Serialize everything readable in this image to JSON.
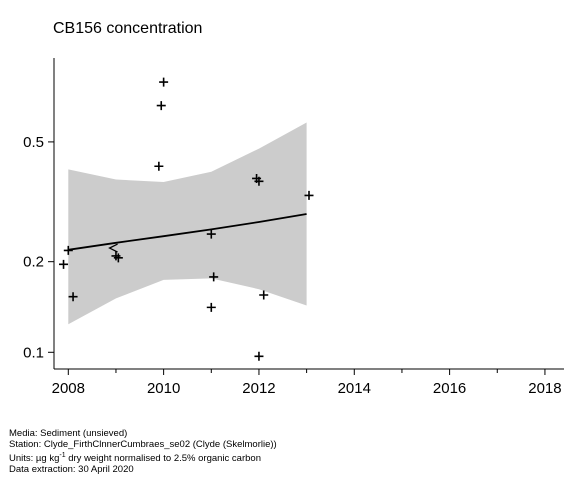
{
  "chart_data": {
    "type": "scatter",
    "title": "CB156 concentration",
    "xlabel": "",
    "ylabel": "",
    "y_scale": "log",
    "xlim": [
      2007.7,
      2018.4
    ],
    "ylim": [
      0.088,
      0.95
    ],
    "x_ticks": [
      2008,
      2010,
      2012,
      2014,
      2016,
      2018
    ],
    "x_tick_labels": [
      "2008",
      "2010",
      "2012",
      "2014",
      "2016",
      "2018"
    ],
    "y_ticks": [
      0.1,
      0.2,
      0.5
    ],
    "y_tick_labels": [
      "0.1",
      "0.2",
      "0.5"
    ],
    "grid": false,
    "points": [
      {
        "x": 2007.9,
        "y": 0.196,
        "marker": "+"
      },
      {
        "x": 2008.0,
        "y": 0.218,
        "marker": "+"
      },
      {
        "x": 2008.1,
        "y": 0.153,
        "marker": "+"
      },
      {
        "x": 2008.95,
        "y": 0.222,
        "marker": "<"
      },
      {
        "x": 2009.0,
        "y": 0.209,
        "marker": "+"
      },
      {
        "x": 2009.05,
        "y": 0.206,
        "marker": "+"
      },
      {
        "x": 2009.9,
        "y": 0.415,
        "marker": "+"
      },
      {
        "x": 2009.95,
        "y": 0.66,
        "marker": "+"
      },
      {
        "x": 2010.0,
        "y": 0.79,
        "marker": "+"
      },
      {
        "x": 2011.0,
        "y": 0.141,
        "marker": "+"
      },
      {
        "x": 2011.0,
        "y": 0.247,
        "marker": "+"
      },
      {
        "x": 2011.05,
        "y": 0.178,
        "marker": "+"
      },
      {
        "x": 2011.95,
        "y": 0.378,
        "marker": "+"
      },
      {
        "x": 2012.0,
        "y": 0.37,
        "marker": "+"
      },
      {
        "x": 2012.0,
        "y": 0.097,
        "marker": "+"
      },
      {
        "x": 2012.1,
        "y": 0.155,
        "marker": "+"
      },
      {
        "x": 2013.05,
        "y": 0.332,
        "marker": "+"
      }
    ],
    "trend": {
      "x": [
        2008.0,
        2009.0,
        2010.0,
        2011.0,
        2012.0,
        2013.0
      ],
      "y": [
        0.219,
        0.231,
        0.243,
        0.256,
        0.271,
        0.288
      ]
    },
    "confidence_band": {
      "x": [
        2008.0,
        2009.0,
        2010.0,
        2011.0,
        2012.0,
        2013.0
      ],
      "upper": [
        0.405,
        0.375,
        0.368,
        0.398,
        0.475,
        0.58
      ],
      "lower": [
        0.124,
        0.151,
        0.174,
        0.176,
        0.162,
        0.143
      ]
    },
    "colors": {
      "band": "#cccccc",
      "trend": "#000000",
      "points": "#000000",
      "axis": "#000000"
    }
  },
  "footer": {
    "media": "Media: Sediment (unsieved)",
    "station": "Station: Clyde_FirthClnnerCumbraes_se02 (Clyde (Skelmorlie))",
    "units_prefix": "Units:  µg kg",
    "units_sup": "-1",
    "units_suffix": " dry weight normalised to 2.5% organic carbon",
    "extraction": "Data extraction: 30 April 2020"
  }
}
